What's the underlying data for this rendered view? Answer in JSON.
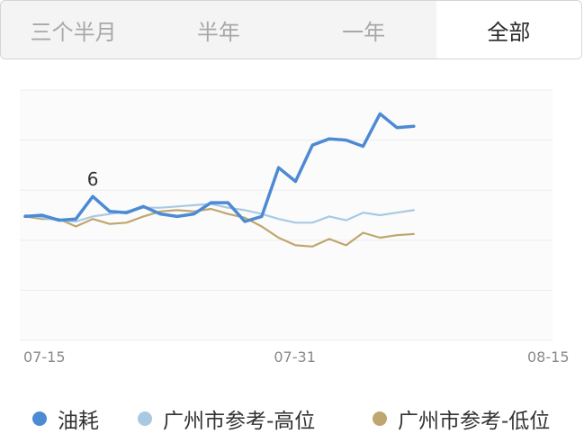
{
  "tabs": [
    {
      "label": "三个半月",
      "active": false
    },
    {
      "label": "半年",
      "active": false
    },
    {
      "label": "一年",
      "active": false
    },
    {
      "label": "全部",
      "active": true
    }
  ],
  "colors": {
    "grid": "#ececec",
    "axis_text": "#8a8a8a",
    "plot_bg": "#fbfbfb"
  },
  "chart_data": {
    "type": "line",
    "x": [
      "07-15",
      "07-16",
      "07-17",
      "07-18",
      "07-19",
      "07-20",
      "07-21",
      "07-22",
      "07-23",
      "07-24",
      "07-25",
      "07-26",
      "07-27",
      "07-28",
      "07-29",
      "07-30",
      "07-31",
      "08-01",
      "08-02",
      "08-03",
      "08-04",
      "08-05",
      "08-06",
      "08-07",
      "08-08",
      "08-09",
      "08-10",
      "08-11",
      "08-12",
      "08-13",
      "08-14",
      "08-15"
    ],
    "x_ticks": [
      "07-15",
      "07-31",
      "08-15"
    ],
    "ylim": [
      0,
      10
    ],
    "grid": true,
    "legend_position": "bottom",
    "annotations": [
      {
        "x": "07-19",
        "text": "6"
      }
    ],
    "series": [
      {
        "name": "油耗",
        "color": "#4d8ad4",
        "values": [
          4.95,
          5.0,
          4.8,
          4.85,
          5.75,
          5.15,
          5.1,
          5.35,
          5.05,
          4.95,
          5.05,
          5.5,
          5.5,
          4.75,
          4.95,
          6.9,
          6.35,
          7.8,
          8.05,
          8.0,
          7.75,
          9.05,
          8.5,
          8.55,
          null,
          null,
          null,
          null,
          null,
          null,
          null,
          null
        ]
      },
      {
        "name": "广州市参考-高位",
        "color": "#a9c9e2",
        "values": [
          5.0,
          4.9,
          4.8,
          4.75,
          4.95,
          5.05,
          5.15,
          5.3,
          5.3,
          5.35,
          5.4,
          5.45,
          5.3,
          5.2,
          5.05,
          4.85,
          4.7,
          4.7,
          4.95,
          4.8,
          5.1,
          5.0,
          5.1,
          5.2,
          null,
          null,
          null,
          null,
          null,
          null,
          null,
          null
        ]
      },
      {
        "name": "广州市参考-低位",
        "color": "#bfa66e",
        "values": [
          4.95,
          4.85,
          4.85,
          4.55,
          4.85,
          4.65,
          4.7,
          4.95,
          5.15,
          5.2,
          5.15,
          5.25,
          5.05,
          4.9,
          4.55,
          4.1,
          3.8,
          3.75,
          4.05,
          3.8,
          4.3,
          4.1,
          4.2,
          4.25,
          null,
          null,
          null,
          null,
          null,
          null,
          null,
          null
        ]
      }
    ]
  }
}
